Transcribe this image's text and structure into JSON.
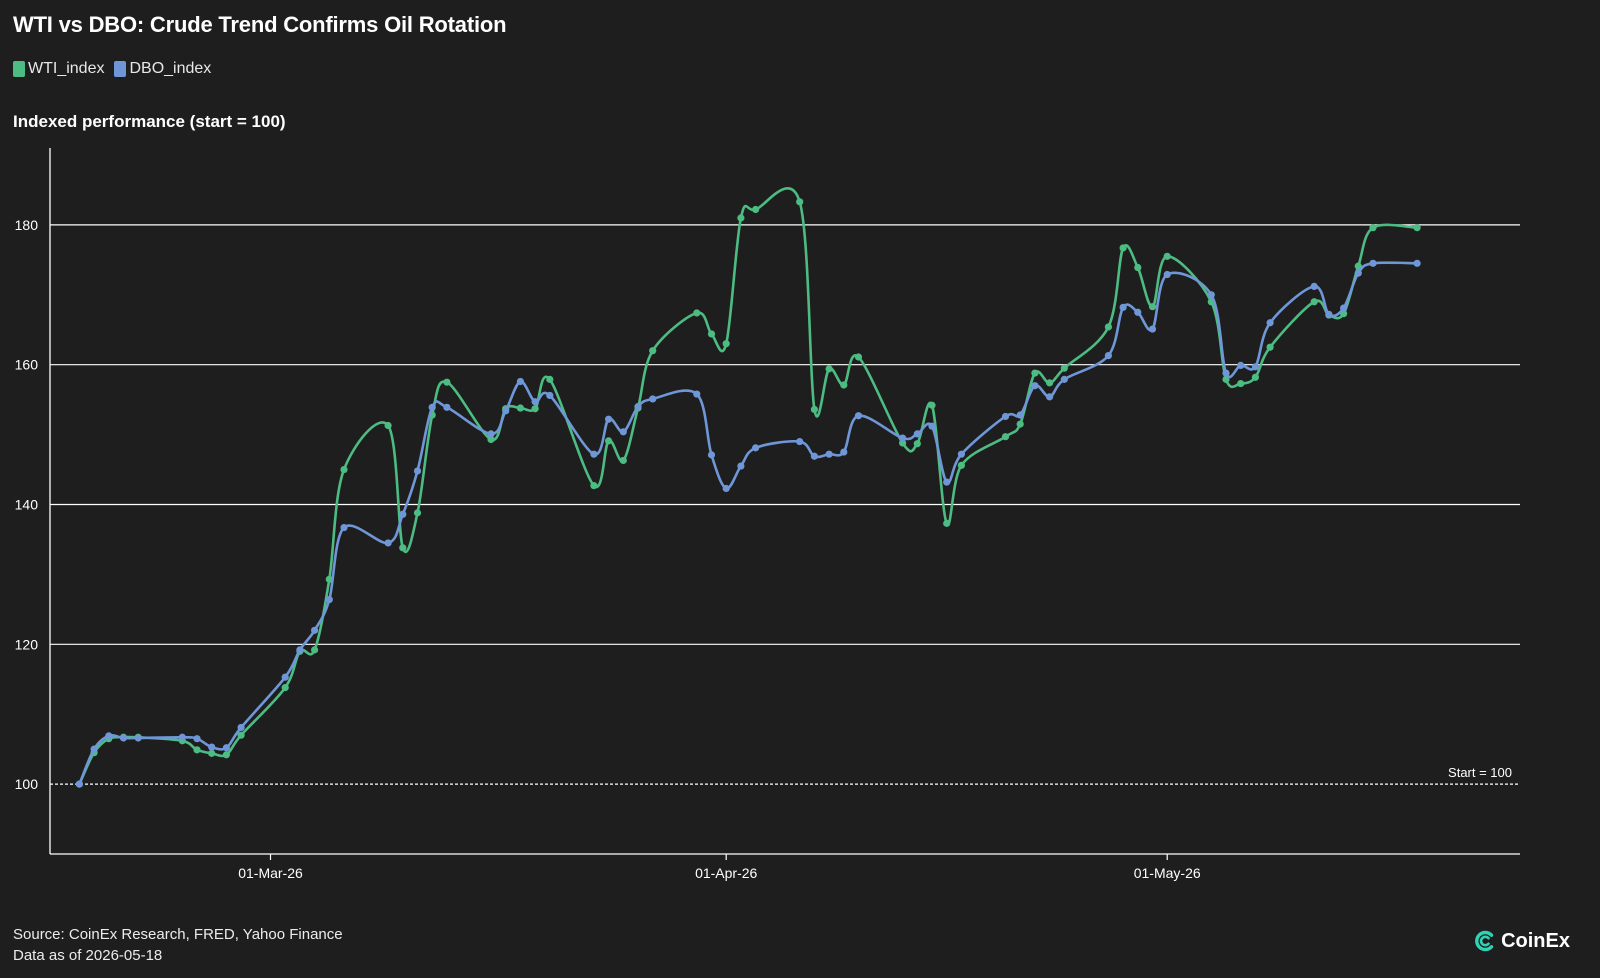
{
  "title": "WTI vs DBO: Crude Trend Confirms Oil Rotation",
  "subtitle": "Indexed performance (start = 100)",
  "footer": {
    "source": "Source: CoinEx Research, FRED, Yahoo Finance",
    "asof": "Data as of 2026-05-18"
  },
  "brand": {
    "name": "CoinEx",
    "icon": "coinex-logo-icon"
  },
  "colors": {
    "background": "#1e1e1e",
    "wti": "#4cbc82",
    "dbo": "#6f97d8",
    "grid": "#ffffff"
  },
  "chart_data": {
    "type": "line",
    "xlabel": "",
    "ylabel": "",
    "x_tick_labels": [
      "01-Mar-26",
      "01-Apr-26",
      "01-May-26"
    ],
    "y_ticks": [
      100,
      120,
      140,
      160,
      180
    ],
    "ylim": [
      90,
      191
    ],
    "xlim": [
      "2026-02-14",
      "2026-05-25"
    ],
    "grid": "horizontal",
    "legend_position": "top-left",
    "reference_line": {
      "y": 100,
      "label": "Start = 100",
      "style": "dashed"
    },
    "x": [
      "2026-02-16",
      "2026-02-17",
      "2026-02-18",
      "2026-02-19",
      "2026-02-20",
      "2026-02-23",
      "2026-02-24",
      "2026-02-25",
      "2026-02-26",
      "2026-02-27",
      "2026-03-02",
      "2026-03-03",
      "2026-03-04",
      "2026-03-05",
      "2026-03-06",
      "2026-03-09",
      "2026-03-10",
      "2026-03-11",
      "2026-03-12",
      "2026-03-13",
      "2026-03-16",
      "2026-03-17",
      "2026-03-18",
      "2026-03-19",
      "2026-03-20",
      "2026-03-23",
      "2026-03-24",
      "2026-03-25",
      "2026-03-26",
      "2026-03-27",
      "2026-03-30",
      "2026-03-31",
      "2026-04-01",
      "2026-04-02",
      "2026-04-03",
      "2026-04-06",
      "2026-04-07",
      "2026-04-08",
      "2026-04-09",
      "2026-04-10",
      "2026-04-13",
      "2026-04-14",
      "2026-04-15",
      "2026-04-16",
      "2026-04-17",
      "2026-04-20",
      "2026-04-21",
      "2026-04-22",
      "2026-04-23",
      "2026-04-24",
      "2026-04-27",
      "2026-04-28",
      "2026-04-29",
      "2026-04-30",
      "2026-05-01",
      "2026-05-04",
      "2026-05-05",
      "2026-05-06",
      "2026-05-07",
      "2026-05-08",
      "2026-05-11",
      "2026-05-12",
      "2026-05-13",
      "2026-05-14",
      "2026-05-15",
      "2026-05-18"
    ],
    "series": [
      {
        "name": "WTI_index",
        "values": [
          100,
          104.5,
          106.5,
          106.7,
          106.7,
          106.2,
          104.9,
          104.4,
          104.2,
          107,
          113.8,
          119,
          119.2,
          129.3,
          145,
          151.3,
          133.8,
          138.8,
          152.8,
          157.5,
          149.3,
          153.7,
          153.8,
          153.7,
          157.9,
          142.7,
          149.1,
          146.3,
          153.8,
          162,
          167.4,
          164.4,
          163,
          181,
          182.2,
          183.3,
          153.6,
          159.4,
          157.1,
          161.1,
          148.8,
          148.7,
          154.2,
          137.3,
          145.6,
          149.7,
          151.5,
          158.8,
          157.4,
          159.5,
          165.4,
          176.7,
          173.9,
          168.3,
          175.5,
          169,
          157.9,
          157.3,
          158.2,
          162.5,
          169,
          167.1,
          167.3,
          174.1,
          179.6,
          179.6
        ],
        "color": "#4cbc82"
      },
      {
        "name": "DBO_index",
        "values": [
          100,
          105,
          106.9,
          106.6,
          106.6,
          106.7,
          106.5,
          105.3,
          105.2,
          108.1,
          115.3,
          119.2,
          122,
          126.4,
          136.7,
          134.5,
          138.6,
          144.8,
          153.9,
          153.9,
          150.1,
          153.4,
          157.6,
          154.7,
          155.6,
          147.2,
          152.2,
          150.4,
          154,
          155.1,
          155.8,
          147.1,
          142.3,
          145.5,
          148.1,
          149,
          146.9,
          147.2,
          147.5,
          152.7,
          149.5,
          150.1,
          151.2,
          143.2,
          147.2,
          152.6,
          152.8,
          157,
          155.4,
          157.9,
          161.3,
          168.2,
          167.5,
          165.1,
          172.9,
          170,
          158.8,
          159.9,
          159.7,
          166,
          171.2,
          167.2,
          168.1,
          173.1,
          174.5,
          174.5
        ],
        "color": "#6f97d8"
      }
    ]
  }
}
